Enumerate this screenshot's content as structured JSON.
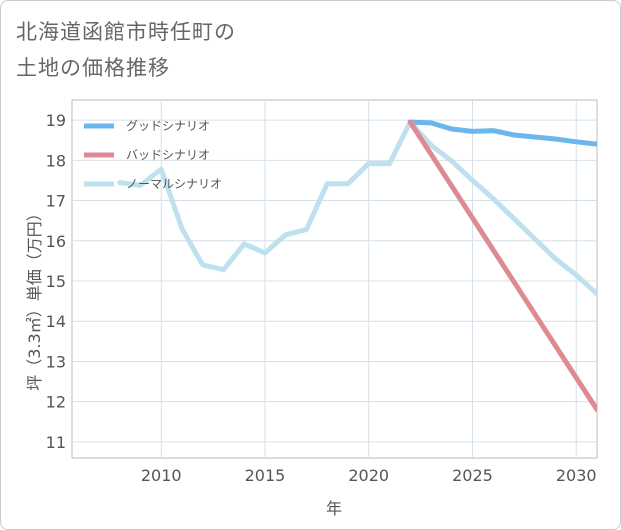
{
  "title_lines": [
    "北海道函館市時任町の",
    "土地の価格推移"
  ],
  "chart_data": {
    "type": "line",
    "xlabel": "年",
    "ylabel": "坪（3.3㎡）単価（万円）",
    "xlim": [
      2005.7,
      2031
    ],
    "ylim": [
      10.6,
      19.5
    ],
    "xticks": [
      2010,
      2015,
      2020,
      2025,
      2030
    ],
    "yticks": [
      11,
      12,
      13,
      14,
      15,
      16,
      17,
      18,
      19
    ],
    "grid": true,
    "legend_position": "top-left",
    "series": [
      {
        "name": "グッドシナリオ",
        "color": "#6bb7ec",
        "x": [
          2022,
          2023,
          2024,
          2025,
          2026,
          2027,
          2028,
          2029,
          2030,
          2031
        ],
        "y": [
          18.95,
          18.93,
          18.78,
          18.72,
          18.74,
          18.63,
          18.58,
          18.53,
          18.46,
          18.4
        ]
      },
      {
        "name": "バッドシナリオ",
        "color": "#dd8a92",
        "x": [
          2022,
          2031
        ],
        "y": [
          18.95,
          11.8
        ]
      },
      {
        "name": "ノーマルシナリオ",
        "color": "#bfe0ee",
        "x": [
          2008,
          2009,
          2010,
          2011,
          2012,
          2013,
          2014,
          2015,
          2016,
          2017,
          2018,
          2019,
          2020,
          2021,
          2022,
          2023,
          2024,
          2025,
          2026,
          2027,
          2028,
          2029,
          2030,
          2031
        ],
        "y": [
          17.45,
          17.38,
          17.78,
          16.3,
          15.4,
          15.28,
          15.92,
          15.7,
          16.15,
          16.28,
          17.42,
          17.42,
          17.92,
          17.92,
          18.95,
          18.38,
          17.98,
          17.5,
          17.05,
          16.55,
          16.05,
          15.55,
          15.15,
          14.68
        ]
      }
    ]
  }
}
